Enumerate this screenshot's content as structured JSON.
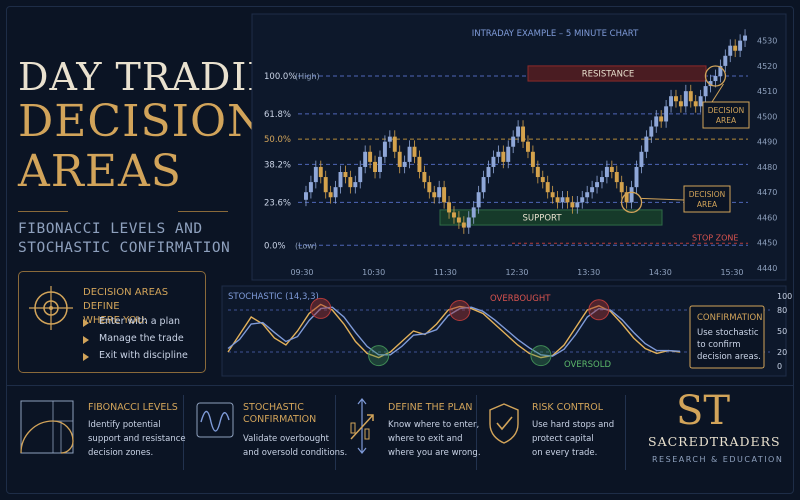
{
  "heading": {
    "line1": "DAY TRADING",
    "line2": "DECISION",
    "line3": "AREAS",
    "sub1": "FIBONACCI LEVELS AND",
    "sub2": "STOCHASTIC CONFIRMATION"
  },
  "definition_box": {
    "title1": "DECISION AREAS DEFINE",
    "title2": "WHERE YOU:",
    "items": [
      "Enter with a plan",
      "Manage the trade",
      "Exit with discipline"
    ],
    "icon": "crosshair-icon"
  },
  "chart_data": [
    {
      "type": "candlestick",
      "title": "INTRADAY EXAMPLE – 5 MINUTE CHART",
      "x_ticks": [
        "09:30",
        "10:30",
        "11:30",
        "12:30",
        "13:30",
        "14:30",
        "15:30"
      ],
      "y_ticks": [
        4440,
        4450,
        4460,
        4470,
        4480,
        4490,
        4500,
        4510,
        4520,
        4530
      ],
      "ylim": [
        4440,
        4535
      ],
      "fib_levels": [
        {
          "label": "100.0%",
          "note": "(High)",
          "price": 4516,
          "color": "#4f66b8"
        },
        {
          "label": "61.8%",
          "note": "",
          "price": 4501,
          "color": "#4f66b8"
        },
        {
          "label": "50.0%",
          "note": "",
          "price": 4491,
          "color": "#b58a3a"
        },
        {
          "label": "38.2%",
          "note": "",
          "price": 4481,
          "color": "#4f66b8"
        },
        {
          "label": "23.6%",
          "note": "",
          "price": 4466,
          "color": "#4f66b8"
        },
        {
          "label": "0.0%",
          "note": "(Low)",
          "price": 4449,
          "color": "#4f66b8"
        }
      ],
      "closes": [
        4470,
        4474,
        4480,
        4476,
        4470,
        4468,
        4472,
        4478,
        4476,
        4472,
        4474,
        4480,
        4486,
        4482,
        4478,
        4484,
        4490,
        4492,
        4486,
        4480,
        4482,
        4488,
        4484,
        4478,
        4474,
        4470,
        4468,
        4472,
        4466,
        4462,
        4460,
        4458,
        4456,
        4460,
        4464,
        4470,
        4476,
        4480,
        4484,
        4486,
        4482,
        4488,
        4492,
        4496,
        4490,
        4486,
        4480,
        4476,
        4474,
        4470,
        4468,
        4466,
        4468,
        4466,
        4464,
        4466,
        4468,
        4470,
        4472,
        4474,
        4476,
        4480,
        4478,
        4474,
        4470,
        4466,
        4472,
        4480,
        4486,
        4492,
        4496,
        4500,
        4498,
        4504,
        4508,
        4506,
        4504,
        4510,
        4506,
        4504,
        4508,
        4512,
        4514,
        4516,
        4520,
        4524,
        4528,
        4526,
        4530,
        4532
      ],
      "zones": [
        {
          "label": "RESISTANCE",
          "price_low": 4514,
          "price_high": 4520,
          "color": "#8b2a2a"
        },
        {
          "label": "SUPPORT",
          "price_low": 4457,
          "price_high": 4463,
          "color": "#2f6b47"
        },
        {
          "label": "STOP ZONE",
          "price": 4449,
          "color": "#b33a3a"
        }
      ],
      "callouts": [
        "DECISION AREA",
        "DECISION AREA"
      ]
    },
    {
      "type": "line",
      "title": "STOCHASTIC (14,3,3)",
      "y_ticks": [
        100,
        80,
        50,
        20,
        0
      ],
      "ylim": [
        0,
        100
      ],
      "overbought_label": "OVERBOUGHT",
      "oversold_label": "OVERSOLD",
      "series": [
        {
          "values": [
            20,
            45,
            70,
            60,
            40,
            30,
            50,
            75,
            88,
            80,
            60,
            35,
            18,
            12,
            20,
            35,
            50,
            45,
            60,
            80,
            85,
            82,
            75,
            60,
            45,
            30,
            18,
            12,
            15,
            30,
            55,
            80,
            86,
            78,
            60,
            40,
            25,
            18,
            22,
            20
          ]
        },
        {
          "values": [
            25,
            38,
            60,
            62,
            48,
            35,
            42,
            65,
            82,
            84,
            70,
            48,
            28,
            16,
            16,
            28,
            44,
            46,
            52,
            72,
            82,
            84,
            78,
            66,
            52,
            38,
            26,
            16,
            14,
            24,
            45,
            70,
            82,
            80,
            66,
            48,
            32,
            22,
            22,
            21
          ]
        }
      ]
    }
  ],
  "confirmation": {
    "title": "CONFIRMATION",
    "lines": [
      "Use stochastic",
      "to confirm",
      "decision areas."
    ]
  },
  "cards": [
    {
      "title": [
        "FIBONACCI LEVELS"
      ],
      "text": [
        "Identify potential",
        "support and resistance",
        "decision zones."
      ],
      "icon": "fibonacci-spiral-icon"
    },
    {
      "title": [
        "STOCHASTIC",
        "CONFIRMATION"
      ],
      "text": [
        "Validate overbought",
        "and oversold conditions."
      ],
      "icon": "wave-icon"
    },
    {
      "title": [
        "DEFINE THE PLAN"
      ],
      "text": [
        "Know where to enter,",
        "where to exit and",
        "where you are wrong."
      ],
      "icon": "plan-arrows-icon"
    },
    {
      "title": [
        "RISK CONTROL"
      ],
      "text": [
        "Use hard stops and",
        "protect capital",
        "on every trade."
      ],
      "icon": "shield-check-icon"
    }
  ],
  "brand": {
    "monogram": "ST",
    "name": "SACREDTRADERS",
    "tagline": "RESEARCH & EDUCATION"
  }
}
